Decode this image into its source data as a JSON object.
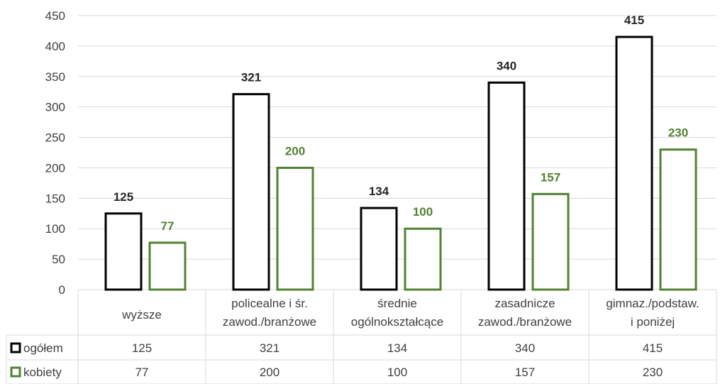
{
  "chart_data": {
    "type": "bar",
    "categories": [
      [
        "wyższe"
      ],
      [
        "policealne i śr.",
        "zawod./branżowe"
      ],
      [
        "średnie",
        "ogólnokształcące"
      ],
      [
        "zasadnicze",
        "zawod./branżowe"
      ],
      [
        "gimnaz./podstaw.",
        "i poniżej"
      ]
    ],
    "series": [
      {
        "name": "ogółem",
        "color": "#000000",
        "values": [
          125,
          321,
          134,
          340,
          415
        ]
      },
      {
        "name": "kobiety",
        "color": "#538135",
        "values": [
          77,
          200,
          100,
          157,
          230
        ]
      }
    ],
    "ylim": [
      0,
      450
    ],
    "yticks": [
      0,
      50,
      100,
      150,
      200,
      250,
      300,
      350,
      400,
      450
    ],
    "grid": true,
    "legend": "data-table",
    "bar_style": "outline"
  }
}
